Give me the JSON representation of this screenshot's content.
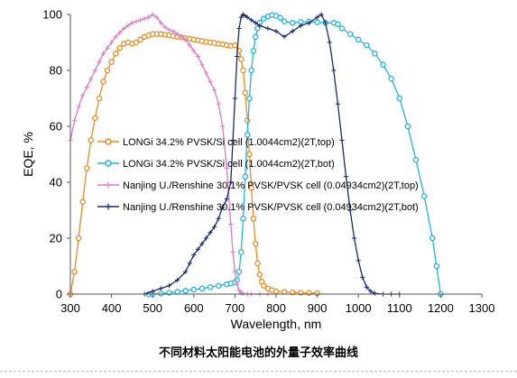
{
  "chart_data": {
    "type": "line",
    "xlabel": "Wavelength, nm",
    "ylabel": "EQE, %",
    "xlim": [
      300,
      1300
    ],
    "ylim": [
      0,
      100
    ],
    "x_ticks": [
      300,
      400,
      500,
      600,
      700,
      800,
      900,
      1000,
      1100,
      1200,
      1300
    ],
    "y_ticks": [
      0,
      20,
      40,
      60,
      80,
      100
    ],
    "grid": false,
    "legend_placement": "center-left",
    "series": [
      {
        "name": "LONGi 34.2% PVSK/Si cell (1.0044cm2)(2T,top)",
        "color": "#F08A1E",
        "marker": "circle",
        "x": [
          300,
          310,
          320,
          330,
          340,
          350,
          360,
          370,
          380,
          390,
          400,
          410,
          420,
          430,
          440,
          450,
          460,
          470,
          480,
          490,
          500,
          510,
          520,
          530,
          540,
          550,
          560,
          570,
          580,
          590,
          600,
          610,
          620,
          630,
          640,
          650,
          660,
          670,
          680,
          690,
          700,
          710,
          715,
          720,
          725,
          730,
          735,
          740,
          745,
          750,
          755,
          760,
          765,
          770,
          780,
          790,
          800,
          820,
          840,
          860,
          880,
          900
        ],
        "y": [
          0,
          8,
          20,
          33,
          45,
          55,
          63,
          70,
          76,
          80,
          83,
          86,
          88,
          89.5,
          90,
          89.5,
          90,
          91,
          92,
          92.5,
          93,
          93,
          93,
          92.8,
          92.5,
          92.3,
          92,
          91.8,
          91.5,
          91.3,
          91,
          90.8,
          90.5,
          90.2,
          90,
          89.8,
          89.5,
          89.3,
          89,
          88.8,
          89,
          87,
          84,
          80,
          72,
          62,
          50,
          38,
          27,
          18,
          11,
          7,
          4.5,
          3,
          2,
          1.4,
          1,
          0.8,
          0.6,
          0.5,
          0.4,
          0.3
        ]
      },
      {
        "name": "LONGi 34.2% PVSK/Si cell (1.0044cm2)(2T,bot)",
        "color": "#1EB4E8",
        "marker": "circle",
        "x": [
          490,
          500,
          520,
          540,
          560,
          580,
          600,
          620,
          640,
          660,
          680,
          690,
          700,
          705,
          710,
          715,
          720,
          725,
          730,
          735,
          740,
          745,
          750,
          755,
          760,
          770,
          780,
          790,
          800,
          810,
          820,
          840,
          860,
          880,
          900,
          920,
          940,
          950,
          960,
          980,
          1000,
          1020,
          1040,
          1060,
          1080,
          1100,
          1120,
          1140,
          1160,
          1180,
          1190,
          1200
        ],
        "y": [
          0,
          0,
          0.2,
          0.5,
          0.8,
          1.2,
          1.6,
          2,
          2.5,
          3,
          3.5,
          3.8,
          4.2,
          5,
          8,
          15,
          27,
          42,
          57,
          70,
          80,
          87,
          92,
          95,
          97,
          98.5,
          99.3,
          99.8,
          99.5,
          98.8,
          97.5,
          97,
          97.3,
          97.5,
          97.2,
          97,
          97,
          96.5,
          95,
          93,
          91,
          89,
          86,
          82,
          77,
          70,
          60,
          48,
          35,
          20,
          10,
          0
        ]
      },
      {
        "name": "Nanjing U./Renshine 30.1% PVSK/PVSK cell (0.04934cm2)(2T,top)",
        "color": "#E07AC8",
        "marker": "plus",
        "x": [
          300,
          310,
          320,
          330,
          340,
          350,
          360,
          370,
          380,
          390,
          400,
          410,
          420,
          430,
          440,
          450,
          460,
          470,
          480,
          490,
          500,
          510,
          520,
          530,
          540,
          550,
          560,
          570,
          580,
          590,
          600,
          610,
          620,
          630,
          640,
          650,
          660,
          670,
          680,
          690,
          695,
          700,
          705,
          710,
          715,
          720,
          730,
          740,
          760,
          780
        ],
        "y": [
          55,
          62,
          67,
          71,
          74,
          77,
          80,
          83,
          86,
          88,
          90,
          92,
          93.5,
          95,
          96,
          97,
          97.5,
          98,
          98.5,
          99,
          100,
          99,
          97,
          95.5,
          94.5,
          94,
          93,
          92,
          91,
          89,
          87,
          85,
          82,
          79,
          76,
          73,
          68,
          60,
          45,
          25,
          15,
          8,
          3.5,
          1.5,
          0.5,
          0.2,
          0,
          0,
          0,
          0
        ]
      },
      {
        "name": "Nanjing U./Renshine 30.1% PVSK/PVSK cell (0.04934cm2)(2T,bot)",
        "color": "#1A2A6C",
        "marker": "plus",
        "x": [
          480,
          500,
          520,
          540,
          560,
          580,
          590,
          600,
          610,
          620,
          630,
          640,
          650,
          660,
          670,
          680,
          690,
          695,
          700,
          705,
          710,
          715,
          720,
          725,
          730,
          740,
          750,
          760,
          780,
          800,
          820,
          840,
          860,
          880,
          900,
          910,
          920,
          930,
          940,
          950,
          960,
          970,
          980,
          990,
          1000,
          1010,
          1020,
          1030,
          1040,
          1060,
          1080,
          1100
        ],
        "y": [
          0,
          1,
          2,
          3,
          5,
          8,
          11,
          14,
          16,
          18,
          20,
          22,
          24,
          27,
          31,
          34,
          40,
          55,
          70,
          85,
          95,
          99,
          100,
          99.5,
          99,
          98,
          97,
          96,
          95,
          94,
          92,
          94,
          96,
          97,
          99,
          100,
          97,
          90,
          80,
          68,
          55,
          42,
          30,
          20,
          12,
          6,
          2.5,
          1,
          0.3,
          0,
          0,
          0
        ]
      }
    ]
  },
  "caption": "不同材料太阳能电池的外量子效率曲线"
}
